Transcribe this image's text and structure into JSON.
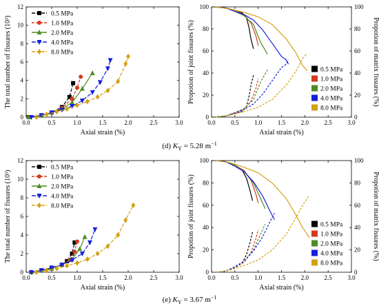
{
  "captions": {
    "d": {
      "prefix": "(d)",
      "k": "K",
      "sub": "Y",
      "rest": " = 5.28 m",
      "sup": "−1"
    },
    "e": {
      "prefix": "(e)",
      "k": "K",
      "sub": "Y",
      "rest": " = 3.67 m",
      "sup": "−1"
    }
  },
  "colors": {
    "0.5 MPa": "#000000",
    "1.0 MPa": "#d23a1e",
    "2.0 MPa": "#4e8b24",
    "4.0 MPa": "#1620d8",
    "8.0 MPa": "#d4a014"
  },
  "chart_data": [
    {
      "id": "d-left",
      "type": "line",
      "xlabel": "Axial strain (%)",
      "ylabel": "The total number of fissures (10³)",
      "xlim": [
        0,
        3.0
      ],
      "ylim": [
        0,
        12
      ],
      "xticks": [
        "0.0",
        "0.5",
        "1.0",
        "1.5",
        "2.0",
        "2.5",
        "3.0"
      ],
      "yticks": [
        "0",
        "2",
        "4",
        "6",
        "8",
        "10",
        "12"
      ],
      "legend": "top-left",
      "series": [
        {
          "name": "0.5 MPa",
          "marker": "square",
          "x": [
            0.05,
            0.3,
            0.5,
            0.7,
            0.85,
            0.92
          ],
          "y": [
            0,
            0.2,
            0.5,
            1.1,
            2.2,
            3.7
          ]
        },
        {
          "name": "1.0 MPa",
          "marker": "circle",
          "x": [
            0.05,
            0.3,
            0.5,
            0.7,
            0.9,
            1.0,
            1.07
          ],
          "y": [
            0,
            0.2,
            0.5,
            1.0,
            2.0,
            3.2,
            4.4
          ]
        },
        {
          "name": "2.0 MPa",
          "marker": "triangle-up",
          "x": [
            0.05,
            0.3,
            0.5,
            0.7,
            0.9,
            1.1,
            1.3
          ],
          "y": [
            0,
            0.2,
            0.5,
            0.9,
            1.6,
            3.1,
            4.8
          ]
        },
        {
          "name": "4.0 MPa",
          "marker": "triangle-down",
          "x": [
            0.1,
            0.3,
            0.5,
            0.7,
            0.9,
            1.1,
            1.3,
            1.45,
            1.6,
            1.65
          ],
          "y": [
            0,
            0.2,
            0.5,
            0.8,
            1.2,
            1.8,
            2.7,
            3.8,
            5.3,
            6.2
          ]
        },
        {
          "name": "8.0 MPa",
          "marker": "diamond",
          "x": [
            0.2,
            0.4,
            0.6,
            0.8,
            1.0,
            1.2,
            1.4,
            1.6,
            1.8,
            1.95,
            2.0
          ],
          "y": [
            0,
            0.3,
            0.6,
            0.9,
            1.3,
            1.7,
            2.2,
            2.9,
            3.9,
            5.8,
            6.6
          ]
        }
      ]
    },
    {
      "id": "d-right",
      "type": "line",
      "xlabel": "Axial strain (%)",
      "ylabel": "Propotion of joint fissures (%)",
      "y2label": "Propotion of matrix fissures (%)",
      "xlim": [
        0,
        3.0
      ],
      "ylim": [
        0,
        100
      ],
      "xticks": [
        "0.0",
        "0.5",
        "1.0",
        "1.5",
        "2.0",
        "2.5",
        "3.0"
      ],
      "yticks": [
        "0",
        "20",
        "40",
        "60",
        "80",
        "100"
      ],
      "legend": "bottom-right",
      "series": [
        {
          "name": "0.5 MPa",
          "joint": {
            "x": [
              0.05,
              0.3,
              0.5,
              0.65,
              0.75,
              0.8,
              0.85,
              0.9
            ],
            "y": [
              100,
              99,
              97,
              95,
              90,
              82,
              70,
              62
            ]
          },
          "matrix": {
            "x": [
              0.05,
              0.3,
              0.5,
              0.65,
              0.75,
              0.8,
              0.85,
              0.9
            ],
            "y": [
              0,
              1,
              3,
              5,
              10,
              18,
              30,
              38
            ]
          }
        },
        {
          "name": "1.0 MPa",
          "joint": {
            "x": [
              0.05,
              0.3,
              0.5,
              0.7,
              0.85,
              0.95,
              1.0
            ],
            "y": [
              100,
              99,
              97,
              93,
              85,
              74,
              65
            ]
          },
          "matrix": {
            "x": [
              0.05,
              0.3,
              0.5,
              0.7,
              0.85,
              0.95,
              1.0
            ],
            "y": [
              0,
              1,
              3,
              7,
              15,
              26,
              35
            ]
          }
        },
        {
          "name": "2.0 MPa",
          "joint": {
            "x": [
              0.05,
              0.3,
              0.5,
              0.7,
              0.9,
              1.05,
              1.2
            ],
            "y": [
              100,
              99,
              96,
              92,
              84,
              68,
              57
            ]
          },
          "matrix": {
            "x": [
              0.05,
              0.3,
              0.5,
              0.7,
              0.9,
              1.05,
              1.2
            ],
            "y": [
              0,
              1,
              4,
              8,
              16,
              32,
              43
            ]
          }
        },
        {
          "name": "4.0 MPa",
          "joint": {
            "x": [
              0.1,
              0.3,
              0.5,
              0.7,
              0.9,
              1.1,
              1.3,
              1.5,
              1.6,
              1.65
            ],
            "y": [
              100,
              99,
              96,
              93,
              88,
              79,
              67,
              55,
              52,
              48
            ]
          },
          "matrix": {
            "x": [
              0.1,
              0.3,
              0.5,
              0.7,
              0.9,
              1.1,
              1.3,
              1.5,
              1.6,
              1.65
            ],
            "y": [
              0,
              1,
              4,
              7,
              12,
              21,
              33,
              45,
              48,
              52
            ]
          }
        },
        {
          "name": "8.0 MPa",
          "joint": {
            "x": [
              0.1,
              0.4,
              0.7,
              1.0,
              1.3,
              1.6,
              1.8,
              1.95,
              2.05
            ],
            "y": [
              100,
              98,
              95,
              91,
              84,
              71,
              59,
              47,
              42
            ]
          },
          "matrix": {
            "x": [
              0.1,
              0.4,
              0.7,
              1.0,
              1.3,
              1.6,
              1.8,
              1.95,
              2.05
            ],
            "y": [
              0,
              2,
              5,
              9,
              16,
              29,
              41,
              53,
              58
            ]
          }
        }
      ]
    },
    {
      "id": "e-left",
      "type": "line",
      "xlabel": "Axial strain (%)",
      "ylabel": "The total number of fissures (10³)",
      "xlim": [
        0,
        3.0
      ],
      "ylim": [
        0,
        12
      ],
      "xticks": [
        "0.0",
        "0.5",
        "1.0",
        "1.5",
        "2.0",
        "2.5",
        "3.0"
      ],
      "yticks": [
        "0",
        "2",
        "4",
        "6",
        "8",
        "10",
        "12"
      ],
      "legend": "top-left",
      "series": [
        {
          "name": "0.5 MPa",
          "marker": "square",
          "x": [
            0.1,
            0.3,
            0.5,
            0.7,
            0.8,
            0.9,
            0.95
          ],
          "y": [
            0,
            0.2,
            0.4,
            0.8,
            1.2,
            2.0,
            3.2
          ]
        },
        {
          "name": "1.0 MPa",
          "marker": "circle",
          "x": [
            0.1,
            0.3,
            0.5,
            0.7,
            0.85,
            0.95,
            1.0
          ],
          "y": [
            0,
            0.2,
            0.4,
            0.8,
            1.3,
            2.2,
            3.3
          ]
        },
        {
          "name": "2.0 MPa",
          "marker": "triangle-up",
          "x": [
            0.1,
            0.3,
            0.5,
            0.7,
            0.9,
            1.05,
            1.15
          ],
          "y": [
            0,
            0.2,
            0.4,
            0.8,
            1.4,
            2.5,
            3.8
          ]
        },
        {
          "name": "4.0 MPa",
          "marker": "triangle-down",
          "x": [
            0.1,
            0.3,
            0.5,
            0.7,
            0.9,
            1.1,
            1.25,
            1.35
          ],
          "y": [
            0,
            0.2,
            0.5,
            0.8,
            1.3,
            2.0,
            3.2,
            4.6
          ]
        },
        {
          "name": "8.0 MPa",
          "marker": "diamond",
          "x": [
            0.2,
            0.4,
            0.6,
            0.8,
            1.0,
            1.2,
            1.4,
            1.6,
            1.8,
            1.95,
            2.1
          ],
          "y": [
            0,
            0.2,
            0.4,
            0.7,
            1.0,
            1.4,
            2.0,
            2.8,
            4.0,
            5.6,
            7.2
          ]
        }
      ]
    },
    {
      "id": "e-right",
      "type": "line",
      "xlabel": "Axial strain (%)",
      "ylabel": "Propotion of joint fissures (%)",
      "y2label": "Propotion of matrix fissures (%)",
      "xlim": [
        0,
        3.0
      ],
      "ylim": [
        0,
        100
      ],
      "xticks": [
        "0.0",
        "0.5",
        "1.0",
        "1.5",
        "2.0",
        "2.5",
        "3.0"
      ],
      "yticks": [
        "0",
        "20",
        "40",
        "60",
        "80",
        "100"
      ],
      "legend": "bottom-right",
      "series": [
        {
          "name": "0.5 MPa",
          "joint": {
            "x": [
              0.1,
              0.3,
              0.5,
              0.65,
              0.75,
              0.82,
              0.88
            ],
            "y": [
              100,
              99,
              96,
              92,
              84,
              74,
              64
            ]
          },
          "matrix": {
            "x": [
              0.1,
              0.3,
              0.5,
              0.65,
              0.75,
              0.82,
              0.88
            ],
            "y": [
              0,
              1,
              4,
              8,
              16,
              26,
              36
            ]
          }
        },
        {
          "name": "1.0 MPa",
          "joint": {
            "x": [
              0.1,
              0.3,
              0.5,
              0.7,
              0.85,
              0.95,
              1.0
            ],
            "y": [
              100,
              99,
              96,
              91,
              82,
              70,
              62
            ]
          },
          "matrix": {
            "x": [
              0.1,
              0.3,
              0.5,
              0.7,
              0.85,
              0.95,
              1.0
            ],
            "y": [
              0,
              1,
              4,
              9,
              18,
              30,
              38
            ]
          }
        },
        {
          "name": "2.0 MPa",
          "joint": {
            "x": [
              0.1,
              0.3,
              0.5,
              0.7,
              0.9,
              1.05,
              1.15
            ],
            "y": [
              100,
              99,
              96,
              90,
              80,
              66,
              57
            ]
          },
          "matrix": {
            "x": [
              0.1,
              0.3,
              0.5,
              0.7,
              0.9,
              1.05,
              1.15
            ],
            "y": [
              0,
              1,
              4,
              10,
              20,
              34,
              43
            ]
          }
        },
        {
          "name": "4.0 MPa",
          "joint": {
            "x": [
              0.1,
              0.3,
              0.5,
              0.7,
              0.9,
              1.1,
              1.25,
              1.35
            ],
            "y": [
              100,
              99,
              95,
              90,
              81,
              68,
              55,
              47
            ]
          },
          "matrix": {
            "x": [
              0.1,
              0.3,
              0.5,
              0.7,
              0.9,
              1.1,
              1.25,
              1.35
            ],
            "y": [
              0,
              1,
              5,
              10,
              19,
              32,
              45,
              53
            ]
          }
        },
        {
          "name": "8.0 MPa",
          "joint": {
            "x": [
              0.1,
              0.4,
              0.7,
              1.0,
              1.3,
              1.6,
              1.8,
              1.95,
              2.1
            ],
            "y": [
              100,
              98,
              94,
              89,
              80,
              66,
              52,
              40,
              31
            ]
          },
          "matrix": {
            "x": [
              0.1,
              0.4,
              0.7,
              1.0,
              1.3,
              1.6,
              1.8,
              1.95,
              2.1
            ],
            "y": [
              0,
              2,
              6,
              11,
              20,
              34,
              48,
              60,
              69
            ]
          }
        }
      ]
    }
  ]
}
